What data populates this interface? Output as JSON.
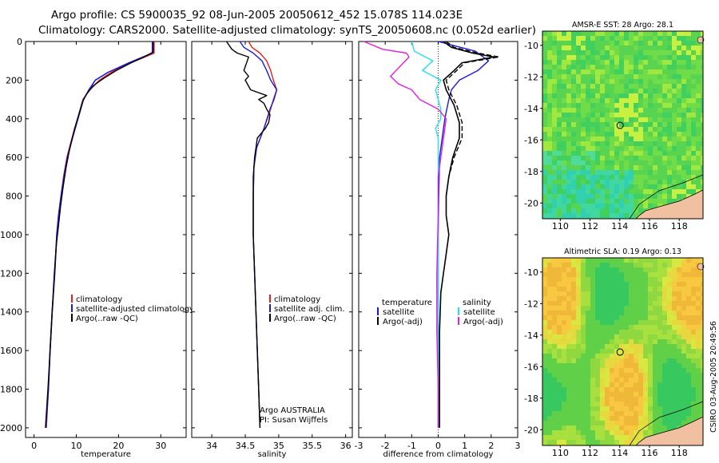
{
  "header": {
    "line1": "Argo profile: CS 5900035_92 08-Jun-2005 20050612_452 15.078S 114.023E",
    "line2": "Climatology: CARS2000. Satellite-adjusted climatology: synTS_20050608.nc (0.052d earlier)"
  },
  "side_caption": "CSIRO 03-Aug-2005 20:49:56",
  "colors": {
    "climatology": "#e8201a",
    "satellite": "#1a1ae0",
    "argo": "#000000",
    "salinity_argo": "#e020e0",
    "salinity_sat": "#20e0f0"
  },
  "chart_data": [
    {
      "type": "line",
      "title": "",
      "xlabel": "temperature",
      "ylabel": "",
      "xlim": [
        -2,
        36
      ],
      "ylim": [
        2050,
        0
      ],
      "xticks": [
        0,
        10,
        20,
        30
      ],
      "yticks": [
        0,
        200,
        400,
        600,
        800,
        1000,
        1200,
        1400,
        1600,
        1800,
        2000
      ],
      "legend": [
        "climatology",
        "satellite-adjusted climatology",
        "Argo(..raw -QC)"
      ],
      "series": [
        {
          "name": "climatology",
          "color_key": "climatology",
          "width": 1.6,
          "points": [
            [
              28.4,
              0
            ],
            [
              28.4,
              60
            ],
            [
              24,
              100
            ],
            [
              19,
              150
            ],
            [
              15.5,
              200
            ],
            [
              13.2,
              250
            ],
            [
              11.6,
              300
            ],
            [
              10.3,
              400
            ],
            [
              9,
              500
            ],
            [
              7.8,
              600
            ],
            [
              7,
              700
            ],
            [
              6.4,
              800
            ],
            [
              5.8,
              900
            ],
            [
              5.4,
              1000
            ],
            [
              4.9,
              1200
            ],
            [
              4.3,
              1400
            ],
            [
              3.8,
              1600
            ],
            [
              3.4,
              1800
            ],
            [
              2.9,
              2000
            ]
          ]
        },
        {
          "name": "satellite-adjusted climatology",
          "color_key": "satellite",
          "width": 1.6,
          "points": [
            [
              28.0,
              0
            ],
            [
              28.0,
              60
            ],
            [
              22.5,
              110
            ],
            [
              17.5,
              160
            ],
            [
              14.5,
              200
            ],
            [
              13,
              250
            ],
            [
              11.7,
              300
            ],
            [
              10.4,
              400
            ],
            [
              9.1,
              500
            ],
            [
              7.9,
              600
            ],
            [
              7.1,
              700
            ],
            [
              6.4,
              800
            ],
            [
              5.8,
              900
            ],
            [
              5.4,
              1000
            ],
            [
              4.9,
              1200
            ],
            [
              4.3,
              1400
            ],
            [
              3.8,
              1600
            ],
            [
              3.4,
              1800
            ],
            [
              2.8,
              2000
            ]
          ]
        },
        {
          "name": "Argo(..raw -QC)",
          "color_key": "argo",
          "width": 1.4,
          "points": [
            [
              28.2,
              0
            ],
            [
              28.2,
              55
            ],
            [
              26,
              80
            ],
            [
              23,
              110
            ],
            [
              19.5,
              150
            ],
            [
              16.5,
              190
            ],
            [
              14,
              230
            ],
            [
              12.5,
              270
            ],
            [
              11.5,
              310
            ],
            [
              10.6,
              380
            ],
            [
              9.6,
              450
            ],
            [
              8.5,
              550
            ],
            [
              7.6,
              650
            ],
            [
              6.9,
              750
            ],
            [
              6.3,
              850
            ],
            [
              5.8,
              950
            ],
            [
              5.3,
              1050
            ],
            [
              4.8,
              1200
            ],
            [
              4.3,
              1400
            ],
            [
              3.8,
              1600
            ],
            [
              3.3,
              1800
            ],
            [
              2.7,
              2000
            ]
          ]
        }
      ]
    },
    {
      "type": "line",
      "title": "",
      "xlabel": "salinity",
      "ylabel": "",
      "xlim": [
        33.7,
        36.1
      ],
      "ylim": [
        2050,
        0
      ],
      "xticks": [
        34,
        34.5,
        35,
        35.5,
        36
      ],
      "yticks": [
        0,
        200,
        400,
        600,
        800,
        1000,
        1200,
        1400,
        1600,
        1800,
        2000
      ],
      "legend": [
        "climatology",
        "satellite adj. clim.",
        "Argo(..raw -QC)"
      ],
      "annotations": [
        "Argo AUSTRALIA",
        "PI: Susan Wijffels"
      ],
      "series": [
        {
          "name": "climatology",
          "color_key": "climatology",
          "width": 1.4,
          "points": [
            [
              34.55,
              0
            ],
            [
              34.6,
              30
            ],
            [
              34.72,
              60
            ],
            [
              34.82,
              100
            ],
            [
              34.88,
              150
            ],
            [
              34.92,
              200
            ],
            [
              34.97,
              250
            ],
            [
              34.92,
              300
            ],
            [
              34.88,
              350
            ],
            [
              34.78,
              450
            ],
            [
              34.67,
              550
            ],
            [
              34.63,
              650
            ],
            [
              34.62,
              800
            ],
            [
              34.62,
              1000
            ],
            [
              34.64,
              1200
            ],
            [
              34.66,
              1400
            ],
            [
              34.68,
              1600
            ],
            [
              34.7,
              1800
            ],
            [
              34.72,
              2000
            ]
          ]
        },
        {
          "name": "satellite adj. clim.",
          "color_key": "satellite",
          "width": 1.4,
          "points": [
            [
              34.42,
              0
            ],
            [
              34.48,
              30
            ],
            [
              34.62,
              60
            ],
            [
              34.75,
              100
            ],
            [
              34.82,
              150
            ],
            [
              34.88,
              200
            ],
            [
              34.97,
              250
            ],
            [
              34.93,
              300
            ],
            [
              34.87,
              350
            ],
            [
              34.78,
              450
            ],
            [
              34.67,
              550
            ],
            [
              34.63,
              650
            ],
            [
              34.62,
              800
            ],
            [
              34.62,
              1000
            ],
            [
              34.64,
              1200
            ],
            [
              34.66,
              1400
            ],
            [
              34.68,
              1600
            ],
            [
              34.7,
              1800
            ],
            [
              34.72,
              2000
            ]
          ]
        },
        {
          "name": "Argo(..raw -QC)",
          "color_key": "argo",
          "width": 1.4,
          "points": [
            [
              34.22,
              0
            ],
            [
              34.3,
              40
            ],
            [
              34.38,
              60
            ],
            [
              34.55,
              80
            ],
            [
              34.48,
              150
            ],
            [
              34.55,
              180
            ],
            [
              34.5,
              200
            ],
            [
              34.58,
              250
            ],
            [
              34.82,
              280
            ],
            [
              34.7,
              300
            ],
            [
              34.78,
              320
            ],
            [
              34.82,
              350
            ],
            [
              34.87,
              380
            ],
            [
              34.85,
              420
            ],
            [
              34.8,
              450
            ],
            [
              34.68,
              500
            ],
            [
              34.64,
              600
            ],
            [
              34.62,
              700
            ],
            [
              34.62,
              1000
            ],
            [
              34.64,
              1200
            ],
            [
              34.66,
              1400
            ],
            [
              34.68,
              1600
            ],
            [
              34.7,
              1800
            ],
            [
              34.72,
              2000
            ]
          ]
        }
      ]
    },
    {
      "type": "line",
      "title": "",
      "xlabel": "difference from climatology",
      "ylabel": "",
      "xlim": [
        -3,
        3
      ],
      "ylim": [
        2050,
        0
      ],
      "xticks": [
        -3,
        -2,
        -1,
        0,
        1,
        2,
        3
      ],
      "yticks": [
        0,
        200,
        400,
        600,
        800,
        1000,
        1200,
        1400,
        1600,
        1800,
        2000
      ],
      "legend": [
        "temperature",
        "satellite",
        "Argo(-adj)",
        "salinity",
        "satellite",
        "Argo(-adj)"
      ],
      "series": [
        {
          "name": "temperature satellite",
          "color_key": "satellite",
          "width": 1.4,
          "points": [
            [
              0,
              0
            ],
            [
              1.4,
              50
            ],
            [
              1.9,
              100
            ],
            [
              1.5,
              150
            ],
            [
              0.8,
              200
            ],
            [
              0.5,
              250
            ],
            [
              0.4,
              300
            ],
            [
              0.25,
              400
            ],
            [
              0.15,
              500
            ],
            [
              0.05,
              600
            ],
            [
              0.02,
              800
            ],
            [
              0,
              1000
            ],
            [
              0,
              1500
            ],
            [
              0,
              2000
            ]
          ]
        },
        {
          "name": "salinity satellite",
          "color_key": "salinity_sat",
          "width": 1.4,
          "points": [
            [
              -1.0,
              0
            ],
            [
              -0.9,
              50
            ],
            [
              -0.2,
              100
            ],
            [
              -0.6,
              150
            ],
            [
              0.1,
              200
            ],
            [
              -0.1,
              250
            ],
            [
              0.0,
              300
            ],
            [
              0.1,
              350
            ],
            [
              0.1,
              400
            ],
            [
              -0.1,
              450
            ],
            [
              0,
              500
            ],
            [
              0,
              700
            ],
            [
              0,
              1000
            ],
            [
              0,
              1500
            ],
            [
              0,
              2000
            ]
          ]
        },
        {
          "name": "salinity Argo(-adj)",
          "color_key": "salinity_argo",
          "width": 1.4,
          "points": [
            [
              -2.8,
              0
            ],
            [
              -2.1,
              40
            ],
            [
              -1.2,
              60
            ],
            [
              -1.1,
              80
            ],
            [
              -1.8,
              180
            ],
            [
              -1.5,
              220
            ],
            [
              -1.0,
              250
            ],
            [
              -0.7,
              300
            ],
            [
              0.0,
              350
            ],
            [
              0.3,
              400
            ],
            [
              0.2,
              500
            ],
            [
              0.1,
              600
            ],
            [
              0,
              700
            ],
            [
              0,
              900
            ],
            [
              -0.05,
              1200
            ],
            [
              -0.05,
              1500
            ],
            [
              0,
              1800
            ],
            [
              0,
              2000
            ]
          ]
        },
        {
          "name": "temperature Argo(-adj) dashed",
          "color_key": "argo",
          "width": 1.4,
          "dashed": true,
          "points": [
            [
              0.3,
              0
            ],
            [
              0.6,
              30
            ],
            [
              1.5,
              60
            ],
            [
              2.3,
              80
            ],
            [
              1.0,
              110
            ],
            [
              0.7,
              150
            ],
            [
              0.3,
              200
            ],
            [
              0.4,
              250
            ],
            [
              0.7,
              330
            ],
            [
              0.9,
              420
            ],
            [
              0.9,
              500
            ],
            [
              0.6,
              600
            ],
            [
              0.4,
              700
            ],
            [
              0.3,
              800
            ]
          ]
        },
        {
          "name": "temperature Argo(-adj)",
          "color_key": "argo",
          "width": 1.6,
          "points": [
            [
              0.2,
              0
            ],
            [
              0.5,
              30
            ],
            [
              1.3,
              60
            ],
            [
              2.1,
              80
            ],
            [
              0.9,
              110
            ],
            [
              0.6,
              150
            ],
            [
              0.2,
              200
            ],
            [
              0.3,
              250
            ],
            [
              0.6,
              330
            ],
            [
              0.8,
              420
            ],
            [
              0.8,
              500
            ],
            [
              0.55,
              600
            ],
            [
              0.4,
              700
            ],
            [
              0.3,
              800
            ],
            [
              0.3,
              900
            ],
            [
              0.4,
              1000
            ],
            [
              0.3,
              1100
            ],
            [
              0.2,
              1200
            ],
            [
              0.1,
              1300
            ],
            [
              0.05,
              1500
            ],
            [
              0.05,
              2000
            ]
          ]
        }
      ]
    }
  ],
  "maps": [
    {
      "title": "AMSR-E SST: 28 Argo: 28.1",
      "xticks": [
        "110",
        "112",
        "114",
        "116",
        "118"
      ],
      "yticks": [
        "-10",
        "-12",
        "-14",
        "-16",
        "-18",
        "-20"
      ],
      "variant": "sst"
    },
    {
      "title": "Altimetric SLA: 0.19 Argo: 0.13",
      "xticks": [
        "110",
        "112",
        "114",
        "116",
        "118"
      ],
      "yticks": [
        "-10",
        "-12",
        "-14",
        "-16",
        "-18",
        "-20"
      ],
      "variant": "sla"
    }
  ]
}
